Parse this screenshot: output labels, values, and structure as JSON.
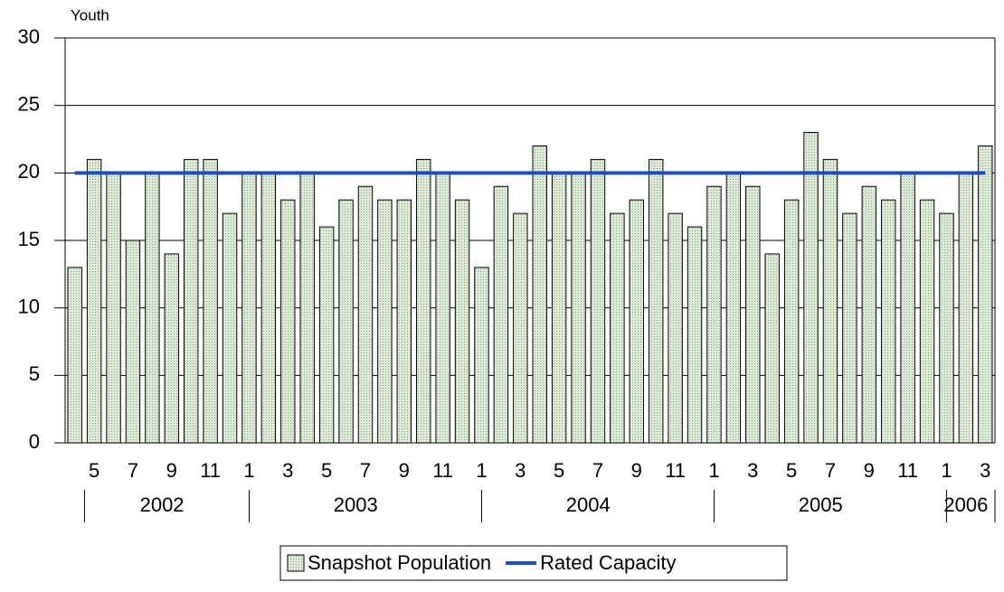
{
  "chart_data": {
    "type": "bar",
    "y_label": "Youth",
    "categories": [
      null,
      "5",
      null,
      "7",
      null,
      "9",
      null,
      "11",
      null,
      "1",
      null,
      "3",
      null,
      "5",
      null,
      "7",
      null,
      "9",
      null,
      "11",
      null,
      "1",
      null,
      "3",
      null,
      "5",
      null,
      "7",
      null,
      "9",
      null,
      "11",
      null,
      "1",
      null,
      "3",
      null,
      "5",
      null,
      "7",
      null,
      "9",
      null,
      "11",
      null,
      "1",
      null,
      "3"
    ],
    "year_groups": [
      {
        "label": "2002",
        "count": 9
      },
      {
        "label": "2003",
        "count": 12
      },
      {
        "label": "2004",
        "count": 12
      },
      {
        "label": "2005",
        "count": 12
      },
      {
        "label": "2006",
        "count": 3
      }
    ],
    "series": [
      {
        "name": "Snapshot Population",
        "type": "bar",
        "color": "#dcebd6",
        "values": [
          13,
          21,
          20,
          15,
          20,
          14,
          21,
          21,
          17,
          20,
          20,
          18,
          20,
          16,
          18,
          19,
          18,
          18,
          21,
          20,
          18,
          13,
          19,
          17,
          22,
          20,
          20,
          21,
          17,
          18,
          21,
          17,
          16,
          19,
          20,
          19,
          14,
          18,
          23,
          21,
          17,
          19,
          18,
          20,
          18,
          17,
          20,
          22
        ]
      },
      {
        "name": "Rated Capacity",
        "type": "line",
        "color": "#1f4fbf",
        "values": [
          20,
          20,
          20,
          20,
          20,
          20,
          20,
          20,
          20,
          20,
          20,
          20,
          20,
          20,
          20,
          20,
          20,
          20,
          20,
          20,
          20,
          20,
          20,
          20,
          20,
          20,
          20,
          20,
          20,
          20,
          20,
          20,
          20,
          20,
          20,
          20,
          20,
          20,
          20,
          20,
          20,
          20,
          20,
          20,
          20,
          20,
          20,
          20
        ]
      }
    ],
    "ylim": [
      0,
      30
    ],
    "yticks": [
      0,
      5,
      10,
      15,
      20,
      25,
      30
    ],
    "grid": true
  }
}
